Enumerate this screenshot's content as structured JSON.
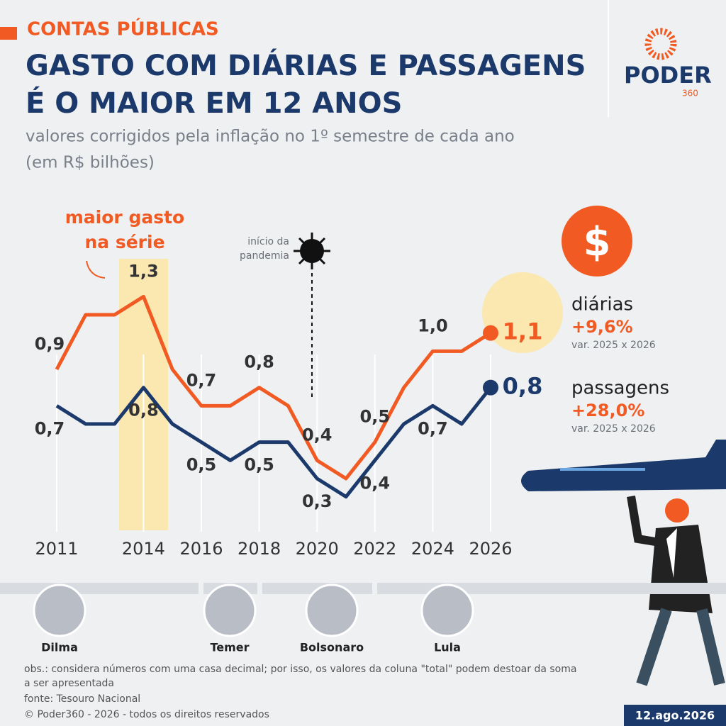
{
  "header": {
    "kicker": "CONTAS PÚBLICAS",
    "title_lines": [
      "GASTO COM DIÁRIAS E PASSAGENS",
      "É O MAIOR EM 12 ANOS"
    ],
    "subtitle_lines": [
      "valores corrigidos pela inflação no 1º semestre de cada ano",
      "(em R$ bilhões)"
    ]
  },
  "logo": {
    "name": "PODER",
    "suffix": "360"
  },
  "chart_data": {
    "type": "line",
    "x": [
      2011,
      2012,
      2013,
      2014,
      2015,
      2016,
      2017,
      2018,
      2019,
      2020,
      2021,
      2022,
      2023,
      2024,
      2025,
      2026
    ],
    "xlim": [
      2011,
      2026
    ],
    "xticks": [
      2011,
      2014,
      2016,
      2018,
      2020,
      2022,
      2024,
      2026
    ],
    "ylim": [
      0,
      1.5
    ],
    "series": [
      {
        "name": "diárias",
        "color": "#f15a22",
        "values": [
          0.9,
          1.2,
          1.2,
          1.3,
          0.9,
          0.7,
          0.7,
          0.8,
          0.7,
          0.4,
          0.3,
          0.5,
          0.8,
          1.0,
          1.0,
          1.1
        ],
        "value_labels": [
          "0,9",
          null,
          null,
          "1,3",
          null,
          "0,7",
          null,
          "0,8",
          null,
          "0,4",
          null,
          "0,5",
          null,
          "1,0",
          null,
          "1,1"
        ],
        "change": "+9,6%",
        "change_note": "var. 2025 x 2026"
      },
      {
        "name": "passagens",
        "color": "#1b3a6b",
        "values": [
          0.7,
          0.6,
          0.6,
          0.8,
          0.6,
          0.5,
          0.4,
          0.5,
          0.5,
          0.3,
          0.2,
          0.4,
          0.6,
          0.7,
          0.6,
          0.8
        ],
        "value_labels": [
          "0,7",
          null,
          null,
          "0,8",
          null,
          "0,5",
          null,
          "0,5",
          null,
          "0,3",
          null,
          "0,4",
          null,
          "0,7",
          null,
          "0,8"
        ],
        "change": "+28,0%",
        "change_note": "var. 2025 x 2026"
      }
    ],
    "highlight_lines": [
      "maior gasto",
      "na série"
    ],
    "pandemic_lines": [
      "início da",
      "pandemia"
    ]
  },
  "presidents": [
    "Dilma",
    "Temer",
    "Bolsonaro",
    "Lula"
  ],
  "footer": {
    "note_lines": [
      "obs.: considera números com uma casa decimal; por isso, os valores da coluna \"total\" podem destoar da soma",
      "a ser apresentada"
    ],
    "source": "fonte: Tesouro Nacional",
    "copyright": "© Poder360 - 2026 - todos os direitos reservados",
    "date": "12.ago.2026"
  }
}
